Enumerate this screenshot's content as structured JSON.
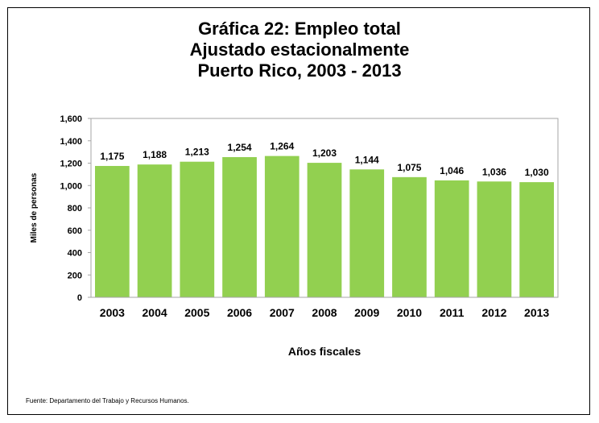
{
  "chart_data": {
    "type": "bar",
    "title_lines": [
      "Gráfica 22: Empleo total",
      "Ajustado estacionalmente",
      "Puerto Rico, 2003 - 2013"
    ],
    "xlabel": "Años fiscales",
    "ylabel": "Miles de personas",
    "categories": [
      "2003",
      "2004",
      "2005",
      "2006",
      "2007",
      "2008",
      "2009",
      "2010",
      "2011",
      "2012",
      "2013"
    ],
    "values": [
      1175,
      1188,
      1213,
      1254,
      1264,
      1203,
      1144,
      1075,
      1046,
      1036,
      1030
    ],
    "data_labels": [
      "1,175",
      "1,188",
      "1,213",
      "1,254",
      "1,264",
      "1,203",
      "1,144",
      "1,075",
      "1,046",
      "1,036",
      "1,030"
    ],
    "y_ticks": [
      "0",
      "200",
      "400",
      "600",
      "800",
      "1,000",
      "1,200",
      "1,400",
      "1,600"
    ],
    "ylim": [
      0,
      1600
    ],
    "grid": false,
    "legend": "none",
    "colors": {
      "bar": "#92d050",
      "plot_background": "#ffffff",
      "frame": "#000000"
    }
  },
  "source_note": "Fuente: Departamento del Trabajo y Recursos Humanos."
}
